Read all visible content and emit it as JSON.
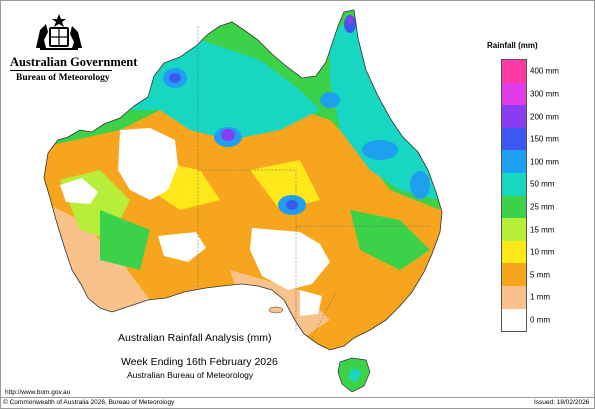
{
  "header": {
    "agency": "Australian Government",
    "bureau": "Bureau of Meteorology"
  },
  "map": {
    "title": "Australian Rainfall Analysis (mm)",
    "period": "Week Ending 16th February 2026",
    "source": "Australian Bureau of Meteorology"
  },
  "legend": {
    "title": "Rainfall (mm)",
    "classes": [
      {
        "label": "400 mm",
        "color": "#ff3aa6"
      },
      {
        "label": "300 mm",
        "color": "#e23be8"
      },
      {
        "label": "200 mm",
        "color": "#8a3df0"
      },
      {
        "label": "150 mm",
        "color": "#3d58f2"
      },
      {
        "label": "100 mm",
        "color": "#1f9ff0"
      },
      {
        "label": "50 mm",
        "color": "#18d7c2"
      },
      {
        "label": "25 mm",
        "color": "#3bd24a"
      },
      {
        "label": "15 mm",
        "color": "#b6ee3a"
      },
      {
        "label": "10 mm",
        "color": "#ffe81a"
      },
      {
        "label": "5 mm",
        "color": "#f7a51d"
      },
      {
        "label": "1 mm",
        "color": "#f8c28a"
      },
      {
        "label": "0 mm",
        "color": "#ffffff"
      }
    ]
  },
  "footer": {
    "url": "http://www.bom.gov.au",
    "copyright": "© Commonwealth of Australia 2026, Bureau of Meteorology",
    "issued": "Issued: 18/02/2026"
  }
}
